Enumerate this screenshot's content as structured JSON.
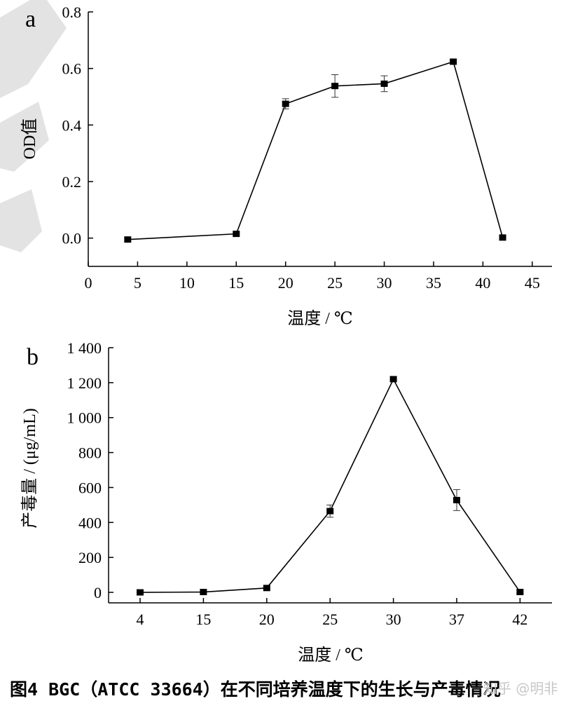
{
  "caption": "图4 BGC（ATCC 33664）在不同培养温度下的生长与产毒情况",
  "watermark": "知乎 @明非",
  "chart_data": [
    {
      "type": "line",
      "panel": "a",
      "xlabel": "温度 / ℃",
      "ylabel": "OD值",
      "xlim": [
        0,
        47
      ],
      "ylim": [
        -0.1,
        0.8
      ],
      "xticks": [
        "0",
        "5",
        "10",
        "15",
        "20",
        "25",
        "30",
        "35",
        "40",
        "45"
      ],
      "yticks": [
        "0.0",
        "0.2",
        "0.4",
        "0.6",
        "0.8"
      ],
      "series": [
        {
          "x": [
            4,
            15,
            20,
            25,
            30,
            37,
            42
          ],
          "y": [
            -0.005,
            0.015,
            0.475,
            0.538,
            0.546,
            0.624,
            0.002
          ],
          "err": [
            0.0,
            0.0,
            0.018,
            0.04,
            0.028,
            0.0,
            0.0
          ]
        }
      ],
      "grid": false
    },
    {
      "type": "line",
      "panel": "b",
      "xlabel": "温度 / ℃",
      "ylabel": "产毒量 / (μg/mL)",
      "categories": [
        "4",
        "15",
        "20",
        "25",
        "30",
        "37",
        "42"
      ],
      "ylim": [
        -60,
        1400
      ],
      "yticks": [
        "0",
        "200",
        "400",
        "600",
        "800",
        "1 000",
        "1 200",
        "1 400"
      ],
      "series": [
        {
          "values": [
            0,
            2,
            25,
            465,
            1220,
            528,
            2
          ],
          "err": [
            0,
            0,
            0,
            35,
            0,
            60,
            0
          ]
        }
      ],
      "grid": false
    }
  ]
}
